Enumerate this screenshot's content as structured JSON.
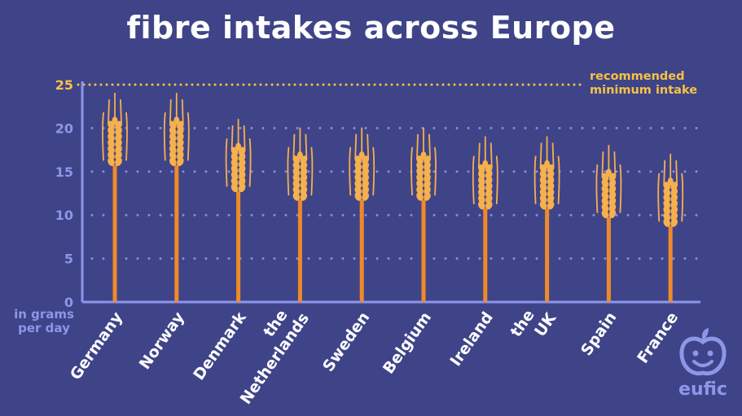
{
  "chart_data": {
    "type": "bar",
    "title": "fibre intakes across Europe",
    "ylabel": "in grams per day",
    "categories": [
      "Germany",
      "Norway",
      "Denmark",
      "the Netherlands",
      "Sweden",
      "Belgium",
      "Ireland",
      "the UK",
      "Spain",
      "France"
    ],
    "values": [
      21,
      21,
      18,
      17,
      17,
      17,
      16,
      16,
      15,
      14
    ],
    "ylim": [
      0,
      25
    ],
    "yticks": [
      0,
      5,
      10,
      15,
      20,
      25
    ],
    "reference_line": {
      "value": 25,
      "label": "recommended minimum intake"
    },
    "grid": true,
    "marker": "wheat-ear"
  },
  "colors": {
    "background": "#3f4488",
    "axis": "#8d96e8",
    "stem": "#ef8a2a",
    "grain": "#f6b04c",
    "reference": "#f6c244",
    "text": "#ffffff"
  },
  "branding": {
    "logo_text": "eufic"
  }
}
